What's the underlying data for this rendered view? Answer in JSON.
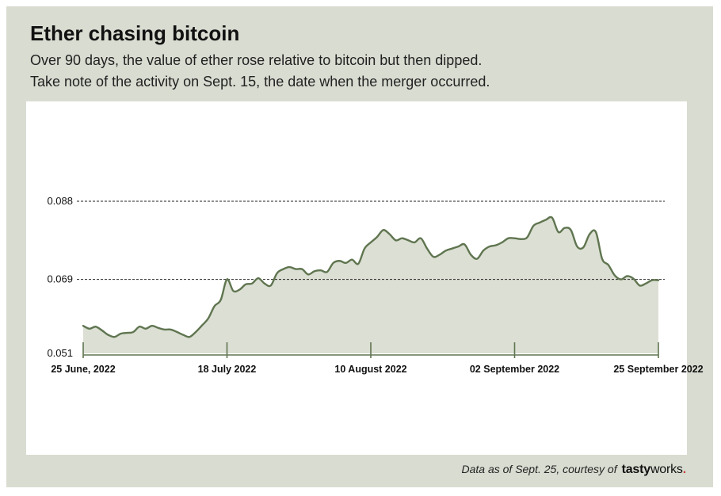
{
  "header": {
    "title": "Ether chasing bitcoin",
    "subtitle_lines": [
      "Over 90 days, the value of ether rose relative to bitcoin but then dipped.",
      "Take note of the activity on Sept. 15, the date when the merger occurred."
    ]
  },
  "footer": {
    "note": "Data as of Sept. 25, courtesy of",
    "logo": {
      "part1": "tasty",
      "part2": "works",
      "part3": "."
    }
  },
  "colors": {
    "frame": "#d9dcd1",
    "line": "#5f7550",
    "area": "#dcdfd3",
    "gridline": "#222222",
    "axis": "#5f7550",
    "logo_dot": "#c6443a"
  },
  "chart_data": {
    "type": "area",
    "title": "Ether chasing bitcoin",
    "xlabel": "",
    "ylabel": "",
    "ylim": [
      0.051,
      0.088
    ],
    "yticks": [
      {
        "value": 0.051,
        "label": "0.051",
        "gridline": false
      },
      {
        "value": 0.069,
        "label": "0.069",
        "gridline": true
      },
      {
        "value": 0.088,
        "label": "0.088",
        "gridline": true
      }
    ],
    "xticks": [
      {
        "day": 0,
        "label": "25 June, 2022"
      },
      {
        "day": 23,
        "label": "18 July 2022"
      },
      {
        "day": 46,
        "label": "10 August 2022"
      },
      {
        "day": 69,
        "label": "02 September 2022"
      },
      {
        "day": 92,
        "label": "25 September 2022"
      }
    ],
    "grid": "horizontal dashed",
    "legend": "none",
    "series": [
      {
        "values": [
          0.0577,
          0.057,
          0.0575,
          0.0566,
          0.0555,
          0.055,
          0.0558,
          0.056,
          0.0562,
          0.0575,
          0.057,
          0.0577,
          0.0572,
          0.0568,
          0.0568,
          0.0562,
          0.0555,
          0.055,
          0.0562,
          0.0578,
          0.0595,
          0.0625,
          0.064,
          0.069,
          0.0662,
          0.0665,
          0.0678,
          0.068,
          0.0693,
          0.068,
          0.0675,
          0.0705,
          0.0715,
          0.072,
          0.0715,
          0.0715,
          0.0702,
          0.071,
          0.0712,
          0.0708,
          0.073,
          0.0735,
          0.073,
          0.0738,
          0.0728,
          0.0765,
          0.078,
          0.0793,
          0.081,
          0.08,
          0.0785,
          0.079,
          0.0785,
          0.078,
          0.079,
          0.0765,
          0.0745,
          0.075,
          0.076,
          0.0765,
          0.077,
          0.0775,
          0.075,
          0.074,
          0.076,
          0.077,
          0.0773,
          0.078,
          0.079,
          0.079,
          0.0788,
          0.0792,
          0.082,
          0.0828,
          0.0835,
          0.084,
          0.0805,
          0.0815,
          0.081,
          0.077,
          0.0768,
          0.08,
          0.0805,
          0.074,
          0.0725,
          0.07,
          0.069,
          0.0698,
          0.0692,
          0.0675,
          0.068,
          0.0688,
          0.0688
        ]
      }
    ]
  }
}
